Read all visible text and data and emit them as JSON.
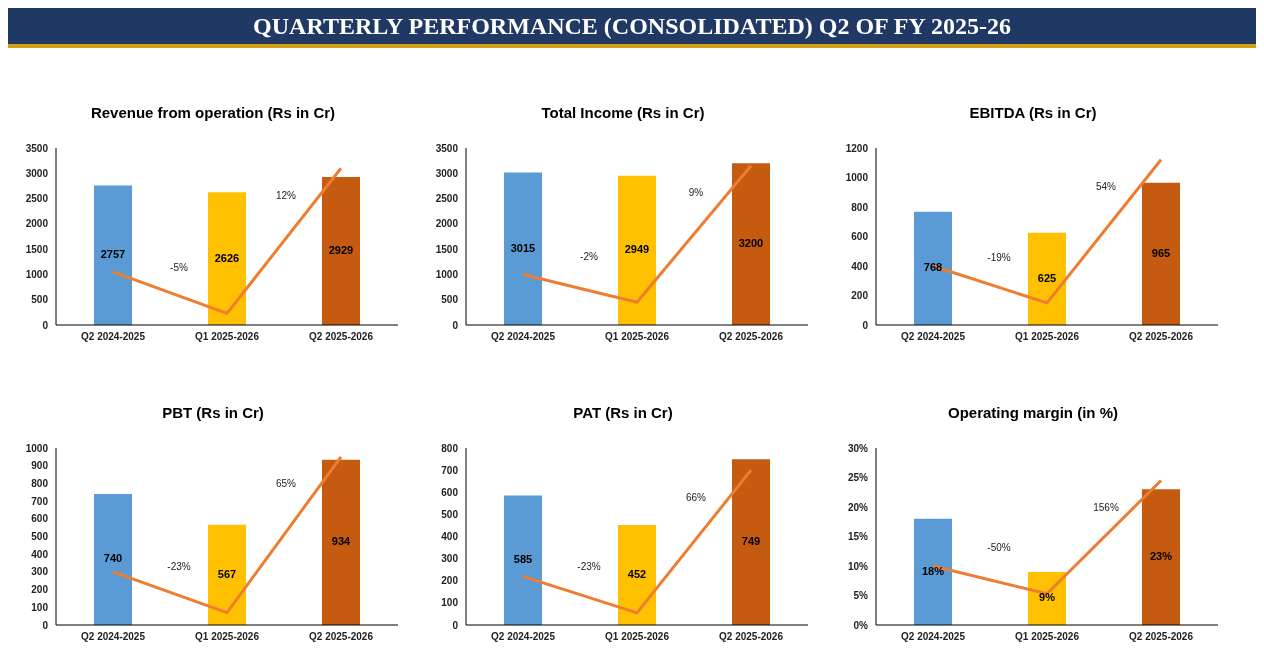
{
  "chart_data": [
    {
      "type": "bar",
      "title": "Revenue from operation (Rs in Cr)",
      "categories": [
        "Q2 2024-2025",
        "Q1 2025-2026",
        "Q2 2025-2026"
      ],
      "ylim": [
        0,
        3500
      ],
      "yticks": [
        0,
        500,
        1000,
        1500,
        2000,
        2500,
        3000,
        3500
      ],
      "grid": false,
      "legend": false,
      "annotations": [
        "QUARTERLY PERFORMANCE (CONSOLIDATED) Q2 OF FY 2025-26",
        "-5%",
        "12%"
      ],
      "series": [
        {
          "colors": [
            "#5b9bd5",
            "#ffc000",
            "#c55a11"
          ],
          "values": [
            2757,
            2626,
            2929
          ],
          "value_labels": [
            "2757",
            "2626",
            "2929"
          ]
        },
        {
          "type": "line",
          "color": "#ed7d31",
          "values": [
            1050,
            230,
            3100
          ]
        }
      ]
    },
    {
      "type": "bar",
      "title": "Total Income (Rs in Cr)",
      "categories": [
        "Q2 2024-2025",
        "Q1 2025-2026",
        "Q2 2025-2026"
      ],
      "ylim": [
        0,
        3500
      ],
      "yticks": [
        0,
        500,
        1000,
        1500,
        2000,
        2500,
        3000,
        3500
      ],
      "grid": false,
      "legend": false,
      "annotations": [
        "-2%",
        "9%"
      ],
      "series": [
        {
          "colors": [
            "#5b9bd5",
            "#ffc000",
            "#c55a11"
          ],
          "values": [
            3015,
            2949,
            3200
          ],
          "value_labels": [
            "3015",
            "2949",
            "3200"
          ]
        },
        {
          "type": "line",
          "color": "#ed7d31",
          "values": [
            1000,
            450,
            3150
          ]
        }
      ]
    },
    {
      "type": "bar",
      "title": "EBITDA (Rs in Cr)",
      "categories": [
        "Q2 2024-2025",
        "Q1 2025-2026",
        "Q2 2025-2026"
      ],
      "ylim": [
        0,
        1200
      ],
      "yticks": [
        0,
        200,
        400,
        600,
        800,
        1000,
        1200
      ],
      "grid": false,
      "legend": false,
      "annotations": [
        "-19%",
        "54%"
      ],
      "series": [
        {
          "colors": [
            "#5b9bd5",
            "#ffc000",
            "#c55a11"
          ],
          "values": [
            768,
            625,
            965
          ],
          "value_labels": [
            "768",
            "625",
            "965"
          ]
        },
        {
          "type": "line",
          "color": "#ed7d31",
          "values": [
            400,
            150,
            1120
          ]
        }
      ]
    },
    {
      "type": "bar",
      "title": "PBT (Rs in Cr)",
      "categories": [
        "Q2 2024-2025",
        "Q1 2025-2026",
        "Q2 2025-2026"
      ],
      "ylim": [
        0,
        1000
      ],
      "yticks": [
        0,
        100,
        200,
        300,
        400,
        500,
        600,
        700,
        800,
        900,
        1000
      ],
      "grid": false,
      "legend": false,
      "annotations": [
        "-23%",
        "65%"
      ],
      "series": [
        {
          "colors": [
            "#5b9bd5",
            "#ffc000",
            "#c55a11"
          ],
          "values": [
            740,
            567,
            934
          ],
          "value_labels": [
            "740",
            "567",
            "934"
          ]
        },
        {
          "type": "line",
          "color": "#ed7d31",
          "values": [
            300,
            70,
            950
          ]
        }
      ]
    },
    {
      "type": "bar",
      "title": "PAT (Rs in Cr)",
      "categories": [
        "Q2 2024-2025",
        "Q1 2025-2026",
        "Q2 2025-2026"
      ],
      "ylim": [
        0,
        800
      ],
      "yticks": [
        0,
        100,
        200,
        300,
        400,
        500,
        600,
        700,
        800
      ],
      "grid": false,
      "legend": false,
      "annotations": [
        "-23%",
        "66%"
      ],
      "series": [
        {
          "colors": [
            "#5b9bd5",
            "#ffc000",
            "#c55a11"
          ],
          "values": [
            585,
            452,
            749
          ],
          "value_labels": [
            "585",
            "452",
            "749"
          ]
        },
        {
          "type": "line",
          "color": "#ed7d31",
          "values": [
            220,
            55,
            700
          ]
        }
      ]
    },
    {
      "type": "bar",
      "title": "Operating margin (in %)",
      "categories": [
        "Q2 2024-2025",
        "Q1 2025-2026",
        "Q2 2025-2026"
      ],
      "ylim": [
        0,
        30
      ],
      "yticks": [
        {
          "value": 0,
          "label": "0%"
        },
        {
          "value": 5,
          "label": "5%"
        },
        {
          "value": 10,
          "label": "10%"
        },
        {
          "value": 15,
          "label": "15%"
        },
        {
          "value": 20,
          "label": "20%"
        },
        {
          "value": 25,
          "label": "25%"
        },
        {
          "value": 30,
          "label": "30%"
        }
      ],
      "grid": false,
      "legend": false,
      "annotations": [
        "-50%",
        "156%"
      ],
      "series": [
        {
          "colors": [
            "#5b9bd5",
            "#ffc000",
            "#c55a11"
          ],
          "values": [
            18,
            9,
            23
          ],
          "value_labels": [
            "18%",
            "9%",
            "23%"
          ]
        },
        {
          "type": "line",
          "color": "#ed7d31",
          "values": [
            10,
            5.3,
            24.5
          ]
        }
      ]
    }
  ]
}
